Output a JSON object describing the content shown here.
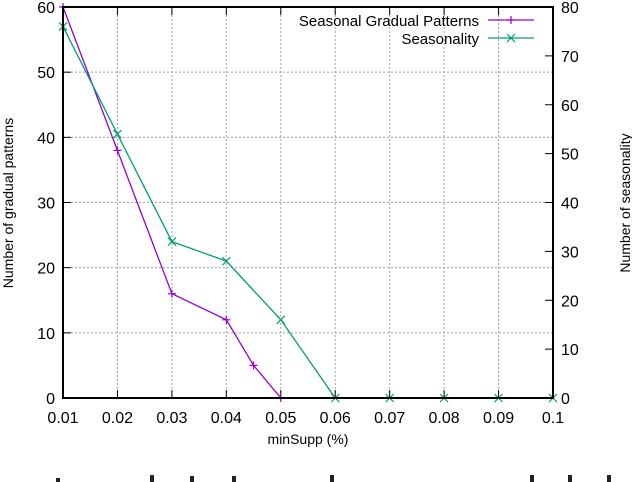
{
  "chart_data": {
    "type": "line",
    "title": "",
    "xlabel": "minSupp (%)",
    "ylabel": "Number of gradual patterns",
    "y2label": "Number of seasonality",
    "xlim": [
      0.01,
      0.1
    ],
    "ylim": [
      0,
      60
    ],
    "y2lim": [
      0,
      80
    ],
    "xticks": [
      "0.01",
      "0.02",
      "0.03",
      "0.04",
      "0.05",
      "0.06",
      "0.07",
      "0.08",
      "0.09",
      "0.1"
    ],
    "yticks": [
      "0",
      "10",
      "20",
      "30",
      "40",
      "50",
      "60"
    ],
    "y2ticks": [
      "0",
      "10",
      "20",
      "30",
      "40",
      "50",
      "60",
      "70",
      "80"
    ],
    "grid": true,
    "legend_position": "top-right",
    "series": [
      {
        "name": "Seasonal Gradual Patterns",
        "axis": "left",
        "color": "#9400d3",
        "marker": "plus",
        "x": [
          0.01,
          0.02,
          0.03,
          0.04,
          0.045,
          0.05
        ],
        "values": [
          60,
          38,
          16,
          12,
          5,
          0
        ]
      },
      {
        "name": "Seasonality",
        "axis": "right",
        "color": "#009e73",
        "marker": "cross",
        "x": [
          0.01,
          0.02,
          0.03,
          0.04,
          0.05,
          0.06,
          0.07,
          0.08,
          0.09,
          0.1
        ],
        "values": [
          76,
          54,
          32,
          28,
          16,
          0,
          0,
          0,
          0,
          0
        ]
      }
    ]
  },
  "legend": {
    "items": [
      {
        "label": "Seasonal Gradual Patterns",
        "color": "#9400d3"
      },
      {
        "label": "Seasonality",
        "color": "#009e73"
      }
    ]
  }
}
